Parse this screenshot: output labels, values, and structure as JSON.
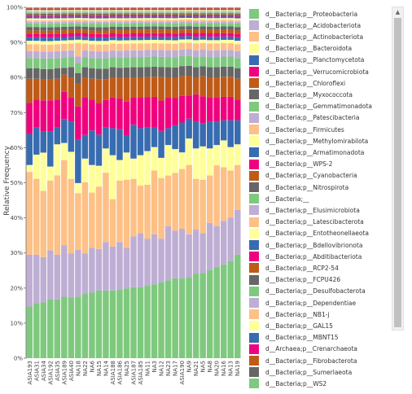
{
  "chart_data": {
    "type": "bar",
    "stacked": "percent",
    "ylabel": "Relative Frequency",
    "xlabel": "",
    "ylim": [
      0,
      100
    ],
    "yticks": [
      "0%",
      "10%",
      "20%",
      "30%",
      "40%",
      "50%",
      "60%",
      "70%",
      "80%",
      "90%",
      "100%"
    ],
    "grid": false,
    "legend_position": "right",
    "categories": [
      "ASIA193",
      "ASIA31",
      "ASIA34",
      "ASIA192",
      "ASIA35",
      "ASIA189",
      "ASIA40",
      "NA18",
      "NA22",
      "NA6",
      "NA15",
      "NA14",
      "ASIA188",
      "ASIA186",
      "NA25",
      "ASIA187",
      "ASIA185",
      "NA11",
      "NA3",
      "NA12",
      "NA23",
      "NA17",
      "ASIA190",
      "NA9",
      "NA21",
      "NA5",
      "NA8",
      "NA20",
      "NA16",
      "NA13",
      "NA19"
    ],
    "series": [
      {
        "name": "d__Bacteria;p__Proteobacteria",
        "color": "#7fc97f",
        "values": [
          15,
          16,
          16,
          17,
          17,
          18,
          18,
          18.5,
          19,
          19,
          19.5,
          19.5,
          20,
          20,
          20.5,
          21,
          21,
          21.5,
          22,
          22.5,
          23,
          23.5,
          24,
          24.5,
          25,
          25.5,
          26,
          27,
          28,
          29,
          30
        ]
      },
      {
        "name": "d__Bacteria;p__Acidobacteriota",
        "color": "#beaed4",
        "values": [
          15,
          14,
          13,
          14,
          13,
          15,
          13,
          14,
          12,
          13,
          12,
          14,
          13,
          14,
          12,
          15,
          16,
          14,
          15,
          13,
          16,
          14,
          15,
          13,
          13,
          12,
          14,
          12,
          13,
          13,
          13
        ]
      },
      {
        "name": "d__Bacteria;p__Actinobacteriota",
        "color": "#fdc086",
        "values": [
          24,
          22,
          19,
          20,
          23,
          25,
          22,
          17,
          21,
          16,
          18,
          20,
          14,
          18,
          20,
          17,
          14,
          16,
          19,
          18,
          15,
          17,
          18,
          21,
          15,
          16,
          14,
          18,
          16,
          14,
          13
        ]
      },
      {
        "name": "d__Bacteria;p__Bacteroidota",
        "color": "#ffff99",
        "values": [
          2,
          7,
          11,
          4,
          9,
          5,
          8,
          3,
          7,
          8,
          6,
          7,
          13,
          6,
          8,
          6,
          9,
          10,
          7,
          6,
          9,
          7,
          5,
          8,
          9,
          10,
          8,
          6,
          8,
          7,
          6
        ]
      },
      {
        "name": "d__Bacteria;p__Planctomycetota",
        "color": "#386cb0",
        "values": [
          9,
          8,
          6,
          10,
          5,
          7,
          9,
          13,
          7,
          10,
          9,
          6,
          8,
          9,
          5,
          10,
          8,
          7,
          6,
          8,
          5,
          7,
          9,
          6,
          8,
          7,
          8,
          7,
          6,
          8,
          7
        ]
      },
      {
        "name": "d__Bacteria;p__Verrucomicrobiota",
        "color": "#f0027f",
        "values": [
          9,
          8,
          9,
          9,
          8,
          8,
          7,
          10,
          11,
          9,
          9,
          8,
          9,
          9,
          10,
          8,
          9,
          9,
          9,
          9,
          9,
          8,
          8,
          7,
          8,
          8,
          7,
          7,
          7,
          7,
          6
        ]
      },
      {
        "name": "d__Bacteria;p__Chloroflexi",
        "color": "#bf5b17",
        "values": [
          7,
          6,
          6,
          6,
          6,
          5,
          6,
          7,
          6,
          6,
          7,
          6,
          6,
          6,
          7,
          6,
          6,
          6,
          6,
          7,
          6,
          6,
          6,
          6,
          5,
          6,
          6,
          6,
          6,
          6,
          6
        ]
      },
      {
        "name": "d__Bacteria;p__Myxococcota",
        "color": "#666666",
        "values": [
          3,
          3,
          3,
          3,
          3,
          2,
          3,
          3,
          3,
          3,
          3,
          3,
          3,
          3,
          3,
          3,
          3,
          3,
          3,
          3,
          3,
          3,
          3,
          3,
          3,
          3,
          3,
          3,
          3,
          3,
          3
        ]
      },
      {
        "name": "d__Bacteria;p__Gemmatimonadota",
        "color": "#7fc97f",
        "values": [
          3,
          3,
          3,
          3,
          3,
          3,
          3,
          3,
          3,
          3,
          3,
          3,
          3,
          3,
          3,
          3,
          3,
          3,
          3,
          3,
          3,
          3,
          3,
          3,
          3,
          3,
          3,
          3,
          3,
          3,
          3
        ]
      },
      {
        "name": "d__Bacteria;p__Patescibacteria",
        "color": "#beaed4",
        "values": [
          2,
          2,
          2,
          2,
          2,
          2,
          2,
          2,
          2,
          2,
          2,
          2,
          2,
          2,
          2,
          2,
          2,
          2,
          2,
          2,
          2,
          2,
          2,
          2,
          2,
          2,
          2,
          2,
          2,
          2,
          2
        ]
      },
      {
        "name": "d__Bacteria;p__Firmicutes",
        "color": "#fdc086",
        "values": [
          2,
          2,
          2,
          2,
          2,
          2,
          2,
          4,
          2,
          2,
          2,
          2,
          2,
          2,
          2,
          2,
          2,
          2,
          2,
          2,
          2,
          2,
          2,
          2,
          2,
          2,
          2,
          2,
          2,
          2,
          2
        ]
      },
      {
        "name": "d__Bacteria;p__Methylomirabilota",
        "color": "#ffff99",
        "values": [
          1,
          1,
          1,
          1,
          1,
          1,
          1,
          1,
          1,
          1,
          1,
          1,
          1,
          1,
          1,
          1,
          1,
          1,
          1,
          1,
          1,
          1,
          1,
          1,
          1,
          1,
          1,
          1,
          1,
          1,
          1
        ]
      },
      {
        "name": "d__Bacteria;p__Armatimonadota",
        "color": "#386cb0",
        "values": [
          1,
          1,
          1,
          1,
          1,
          1,
          1,
          1,
          1,
          1,
          1,
          1,
          1,
          1,
          1,
          1,
          1,
          1,
          1,
          1,
          1,
          1,
          1,
          1,
          1,
          1,
          1,
          1,
          1,
          1,
          1
        ]
      },
      {
        "name": "d__Bacteria;p__WPS-2",
        "color": "#f0027f",
        "values": [
          1,
          1,
          1,
          1,
          1,
          1,
          1,
          1,
          1,
          1,
          1,
          1,
          1,
          1,
          1,
          1,
          1,
          1,
          1,
          1,
          1,
          1,
          1,
          1,
          1,
          1,
          1,
          1,
          1,
          1,
          1
        ]
      },
      {
        "name": "d__Bacteria;p__Cyanobacteria",
        "color": "#bf5b17",
        "values": [
          1,
          1,
          1,
          1,
          1,
          1,
          1,
          1,
          1,
          1,
          1,
          1,
          1,
          1,
          1,
          1,
          1,
          1,
          1,
          1,
          1,
          1,
          1,
          1,
          1,
          1,
          1,
          1,
          1,
          1,
          1
        ]
      },
      {
        "name": "d__Bacteria;p__Nitrospirota",
        "color": "#666666",
        "values": [
          1,
          1,
          1,
          1,
          1,
          1,
          1,
          1,
          1,
          1,
          1,
          1,
          1,
          1,
          1,
          1,
          1,
          1,
          1,
          1,
          1,
          1,
          1,
          1,
          1,
          1,
          1,
          1,
          1,
          1,
          1
        ]
      },
      {
        "name": "d__Bacteria;__",
        "color": "#7fc97f",
        "values": [
          1,
          1,
          1,
          1,
          1,
          1,
          1,
          1,
          1,
          1,
          1,
          1,
          1,
          1,
          1,
          1,
          1,
          1,
          1,
          1,
          1,
          1,
          1,
          1,
          1,
          1,
          1,
          1,
          1,
          1,
          1
        ]
      },
      {
        "name": "d__Bacteria;p__Elusimicrobiota",
        "color": "#beaed4",
        "values": [
          0.5,
          0.5,
          0.5,
          0.5,
          0.5,
          0.5,
          0.5,
          0.5,
          0.5,
          0.5,
          0.5,
          0.5,
          0.5,
          0.5,
          0.5,
          0.5,
          0.5,
          0.5,
          0.5,
          0.5,
          0.5,
          0.5,
          0.5,
          0.5,
          0.5,
          0.5,
          0.5,
          0.5,
          0.5,
          0.5,
          0.5
        ]
      },
      {
        "name": "d__Bacteria;p__Latescibacterota",
        "color": "#fdc086",
        "values": [
          0.5,
          0.5,
          0.5,
          0.5,
          0.5,
          0.5,
          0.5,
          0.5,
          0.5,
          0.5,
          0.5,
          0.5,
          0.5,
          0.5,
          0.5,
          0.5,
          0.5,
          0.5,
          0.5,
          0.5,
          0.5,
          0.5,
          0.5,
          0.5,
          0.5,
          0.5,
          0.5,
          0.5,
          0.5,
          0.5,
          0.5
        ]
      },
      {
        "name": "d__Bacteria;p__Entotheonellaeota",
        "color": "#ffff99",
        "values": [
          0.5,
          0.5,
          0.5,
          0.5,
          0.5,
          0.5,
          0.5,
          0.5,
          0.5,
          0.5,
          0.5,
          0.5,
          0.5,
          0.5,
          0.5,
          0.5,
          0.5,
          0.5,
          0.5,
          0.5,
          0.5,
          0.5,
          0.5,
          0.5,
          0.5,
          0.5,
          0.5,
          0.5,
          0.5,
          0.5,
          0.5
        ]
      },
      {
        "name": "d__Bacteria;p__Bdellovibrionota",
        "color": "#386cb0",
        "values": [
          0.5,
          0.5,
          0.5,
          0.5,
          0.5,
          0.5,
          0.5,
          0.5,
          0.5,
          0.5,
          0.5,
          0.5,
          0.5,
          0.5,
          0.5,
          0.5,
          0.5,
          0.5,
          0.5,
          0.5,
          0.5,
          0.5,
          0.5,
          0.5,
          0.5,
          0.5,
          0.5,
          0.5,
          0.5,
          0.5,
          0.5
        ]
      },
      {
        "name": "d__Bacteria;p__Abditibacteriota",
        "color": "#f0027f",
        "values": [
          0.3,
          0.3,
          0.3,
          0.3,
          0.3,
          0.3,
          0.3,
          0.3,
          0.3,
          0.3,
          0.3,
          0.3,
          0.3,
          0.3,
          0.3,
          0.3,
          0.3,
          0.3,
          0.3,
          0.3,
          0.3,
          0.3,
          0.3,
          0.3,
          0.3,
          0.3,
          0.3,
          0.3,
          0.3,
          0.3,
          0.3
        ]
      },
      {
        "name": "d__Bacteria;p__RCP2-54",
        "color": "#bf5b17",
        "values": [
          0.3,
          0.3,
          0.3,
          0.3,
          0.3,
          0.3,
          0.3,
          0.3,
          0.3,
          0.3,
          0.3,
          0.3,
          0.3,
          0.3,
          0.3,
          0.3,
          0.3,
          0.3,
          0.3,
          0.3,
          0.3,
          0.3,
          0.3,
          0.3,
          0.3,
          0.3,
          0.3,
          0.3,
          0.3,
          0.3,
          0.3
        ]
      },
      {
        "name": "d__Bacteria;p__FCPU426",
        "color": "#666666",
        "values": [
          0.3,
          0.3,
          0.3,
          0.3,
          0.3,
          0.3,
          0.3,
          0.3,
          0.3,
          0.3,
          0.3,
          0.3,
          0.3,
          0.3,
          0.3,
          0.3,
          0.3,
          0.3,
          0.3,
          0.3,
          0.3,
          0.3,
          0.3,
          0.3,
          0.3,
          0.3,
          0.3,
          0.3,
          0.3,
          0.3,
          0.3
        ]
      },
      {
        "name": "d__Bacteria;p__Desulfobacterota",
        "color": "#7fc97f",
        "values": [
          0.3,
          0.3,
          0.3,
          0.3,
          0.3,
          0.3,
          0.3,
          0.3,
          0.3,
          0.3,
          0.3,
          0.3,
          0.3,
          0.3,
          0.3,
          0.3,
          0.3,
          0.3,
          0.3,
          0.3,
          0.3,
          0.3,
          0.3,
          0.3,
          0.3,
          0.3,
          0.3,
          0.3,
          0.3,
          0.3,
          0.3
        ]
      },
      {
        "name": "d__Bacteria;p__Dependentiae",
        "color": "#beaed4",
        "values": [
          0.3,
          0.3,
          0.3,
          0.3,
          0.3,
          0.3,
          0.3,
          0.3,
          0.3,
          0.3,
          0.3,
          0.3,
          0.3,
          0.3,
          0.3,
          0.3,
          0.3,
          0.3,
          0.3,
          0.3,
          0.3,
          0.3,
          0.3,
          0.3,
          0.3,
          0.3,
          0.3,
          0.3,
          0.3,
          0.3,
          0.3
        ]
      },
      {
        "name": "d__Bacteria;p__NB1-j",
        "color": "#fdc086",
        "values": [
          0.2,
          0.2,
          0.2,
          0.2,
          0.2,
          0.2,
          0.2,
          0.2,
          0.2,
          0.2,
          0.2,
          0.2,
          0.2,
          0.2,
          0.2,
          0.2,
          0.2,
          0.2,
          0.2,
          0.2,
          0.2,
          0.2,
          0.2,
          0.2,
          0.2,
          0.2,
          0.2,
          0.2,
          0.2,
          0.2,
          0.2
        ]
      },
      {
        "name": "d__Bacteria;p__GAL15",
        "color": "#ffff99",
        "values": [
          0.2,
          0.2,
          0.2,
          0.2,
          0.2,
          0.2,
          0.2,
          0.2,
          0.2,
          0.2,
          0.2,
          0.2,
          0.2,
          0.2,
          0.2,
          0.2,
          0.2,
          0.2,
          0.2,
          0.2,
          0.2,
          0.2,
          0.2,
          0.2,
          0.2,
          0.2,
          0.2,
          0.2,
          0.2,
          0.2,
          0.2
        ]
      },
      {
        "name": "d__Bacteria;p__MBNT15",
        "color": "#386cb0",
        "values": [
          0.2,
          0.2,
          0.2,
          0.2,
          0.2,
          0.2,
          0.2,
          0.2,
          0.2,
          0.2,
          0.2,
          0.2,
          0.2,
          0.2,
          0.2,
          0.2,
          0.2,
          0.2,
          0.2,
          0.2,
          0.2,
          0.2,
          0.2,
          0.2,
          0.2,
          0.2,
          0.2,
          0.2,
          0.2,
          0.2,
          0.2
        ]
      },
      {
        "name": "d__Archaea;p__Crenarchaeota",
        "color": "#f0027f",
        "values": [
          0.2,
          0.2,
          0.2,
          0.2,
          0.2,
          0.2,
          0.2,
          0.2,
          0.2,
          0.2,
          0.2,
          0.2,
          0.2,
          0.2,
          0.2,
          0.2,
          0.2,
          0.2,
          0.2,
          0.2,
          0.2,
          0.2,
          0.2,
          0.2,
          0.2,
          0.2,
          0.2,
          0.2,
          0.2,
          0.2,
          0.2
        ]
      },
      {
        "name": "d__Bacteria;p__Fibrobacterota",
        "color": "#bf5b17",
        "values": [
          0.2,
          0.2,
          0.2,
          0.2,
          0.2,
          0.2,
          0.2,
          0.2,
          0.2,
          0.2,
          0.2,
          0.2,
          0.2,
          0.2,
          0.2,
          0.2,
          0.2,
          0.2,
          0.2,
          0.2,
          0.2,
          0.2,
          0.2,
          0.2,
          0.2,
          0.2,
          0.2,
          0.2,
          0.2,
          0.2,
          0.2
        ]
      },
      {
        "name": "d__Bacteria;p__Sumerlaeota",
        "color": "#666666",
        "values": [
          0.1,
          0.1,
          0.1,
          0.1,
          0.1,
          0.1,
          0.1,
          0.1,
          0.1,
          0.1,
          0.1,
          0.1,
          0.1,
          0.1,
          0.1,
          0.1,
          0.1,
          0.1,
          0.1,
          0.1,
          0.1,
          0.1,
          0.1,
          0.1,
          0.1,
          0.1,
          0.1,
          0.1,
          0.1,
          0.1,
          0.1
        ]
      },
      {
        "name": "d__Bacteria;p__WS2",
        "color": "#7fc97f",
        "values": [
          0.1,
          0.1,
          0.1,
          0.1,
          0.1,
          0.1,
          0.1,
          0.1,
          0.1,
          0.1,
          0.1,
          0.1,
          0.1,
          0.1,
          0.1,
          0.1,
          0.1,
          0.1,
          0.1,
          0.1,
          0.1,
          0.1,
          0.1,
          0.1,
          0.1,
          0.1,
          0.1,
          0.1,
          0.1,
          0.1,
          0.1
        ]
      }
    ]
  },
  "scrollbar": {
    "up_arrow": "▲"
  }
}
